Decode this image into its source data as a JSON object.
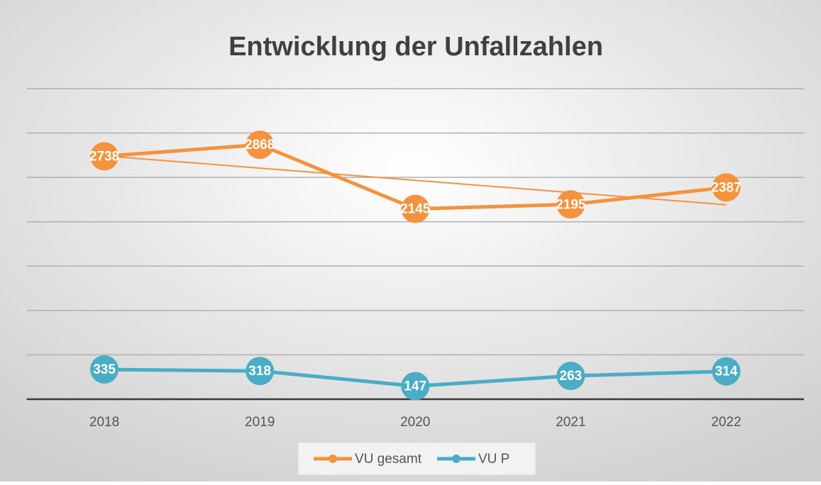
{
  "chart_data": {
    "type": "line",
    "title": "Entwicklung der Unfallzahlen",
    "categories": [
      "2018",
      "2019",
      "2020",
      "2021",
      "2022"
    ],
    "series": [
      {
        "name": "VU gesamt",
        "color": "#f5923e",
        "values": [
          2738,
          2868,
          2145,
          2195,
          2387
        ],
        "trendline": true
      },
      {
        "name": "VU P",
        "color": "#4bacc6",
        "values": [
          335,
          318,
          147,
          263,
          314
        ]
      }
    ],
    "ylim": [
      0,
      3500
    ],
    "yticks": [
      0,
      500,
      1000,
      1500,
      2000,
      2500,
      3000,
      3500
    ],
    "grid": true,
    "legend": "bottom",
    "data_labels": true
  }
}
